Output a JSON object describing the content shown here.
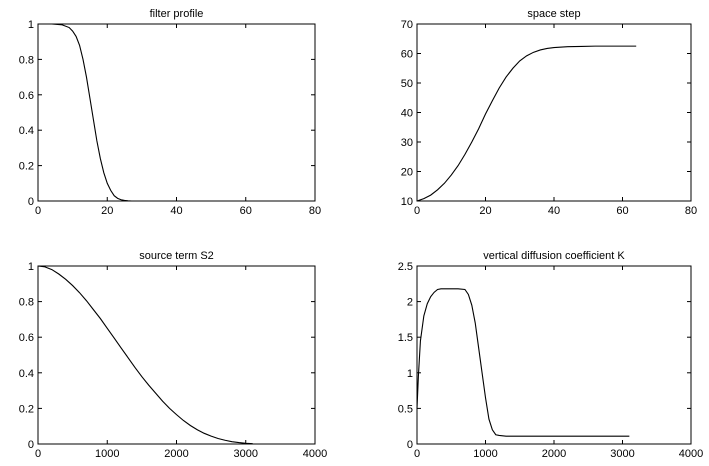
{
  "figure": {
    "background": "#ffffff",
    "line_color": "#000000"
  },
  "chart_data": [
    {
      "type": "line",
      "title": "filter profile",
      "xlabel": "",
      "ylabel": "",
      "xlim": [
        0,
        80
      ],
      "ylim": [
        0,
        1
      ],
      "xticks": [
        0,
        20,
        40,
        60,
        80
      ],
      "yticks": [
        0,
        0.2,
        0.4,
        0.6,
        0.8,
        1
      ],
      "grid": false,
      "series": [
        {
          "x": [
            0,
            4,
            7,
            9,
            10,
            11,
            12,
            13,
            14,
            15,
            16,
            17,
            18,
            19,
            20,
            21,
            22,
            23,
            24,
            25,
            26,
            27,
            28
          ],
          "y": [
            1,
            1,
            0.995,
            0.98,
            0.96,
            0.93,
            0.88,
            0.8,
            0.7,
            0.58,
            0.46,
            0.34,
            0.24,
            0.16,
            0.1,
            0.06,
            0.03,
            0.015,
            0.007,
            0.003,
            0.001,
            0,
            0
          ]
        }
      ]
    },
    {
      "type": "line",
      "title": "space step",
      "xlabel": "",
      "ylabel": "",
      "xlim": [
        0,
        80
      ],
      "ylim": [
        10,
        70
      ],
      "xticks": [
        0,
        20,
        40,
        60,
        80
      ],
      "yticks": [
        10,
        20,
        30,
        40,
        50,
        60,
        70
      ],
      "grid": false,
      "series": [
        {
          "x": [
            0,
            2,
            4,
            6,
            8,
            10,
            12,
            14,
            16,
            18,
            20,
            22,
            24,
            26,
            28,
            30,
            32,
            34,
            36,
            38,
            40,
            44,
            48,
            52,
            56,
            60,
            64
          ],
          "y": [
            10,
            10.8,
            12,
            13.8,
            16,
            18.8,
            22,
            25.8,
            30,
            34.5,
            39.5,
            44,
            48.3,
            52,
            55,
            57.5,
            59.2,
            60.4,
            61.2,
            61.7,
            62,
            62.3,
            62.4,
            62.5,
            62.5,
            62.5,
            62.5
          ]
        }
      ]
    },
    {
      "type": "line",
      "title": "source term S2",
      "xlabel": "",
      "ylabel": "",
      "xlim": [
        0,
        4000
      ],
      "ylim": [
        0,
        1
      ],
      "xticks": [
        0,
        1000,
        2000,
        3000,
        4000
      ],
      "yticks": [
        0,
        0.2,
        0.4,
        0.6,
        0.8,
        1
      ],
      "grid": false,
      "series": [
        {
          "x": [
            0,
            100,
            200,
            300,
            400,
            500,
            600,
            700,
            800,
            900,
            1000,
            1100,
            1200,
            1300,
            1400,
            1500,
            1600,
            1700,
            1800,
            1900,
            2000,
            2100,
            2200,
            2300,
            2400,
            2500,
            2600,
            2700,
            2800,
            2900,
            3000,
            3100
          ],
          "y": [
            1,
            0.995,
            0.98,
            0.955,
            0.925,
            0.89,
            0.85,
            0.805,
            0.755,
            0.705,
            0.65,
            0.595,
            0.54,
            0.485,
            0.43,
            0.378,
            0.33,
            0.285,
            0.24,
            0.2,
            0.165,
            0.132,
            0.104,
            0.08,
            0.06,
            0.044,
            0.031,
            0.021,
            0.013,
            0.008,
            0.004,
            0.002
          ]
        }
      ]
    },
    {
      "type": "line",
      "title": "vertical diffusion coefficient K",
      "xlabel": "",
      "ylabel": "",
      "xlim": [
        0,
        4000
      ],
      "ylim": [
        0,
        2.5
      ],
      "xticks": [
        0,
        1000,
        2000,
        3000,
        4000
      ],
      "yticks": [
        0,
        0.5,
        1,
        1.5,
        2,
        2.5
      ],
      "grid": false,
      "series": [
        {
          "x": [
            0,
            20,
            50,
            100,
            150,
            200,
            250,
            300,
            350,
            400,
            500,
            600,
            700,
            750,
            800,
            850,
            900,
            950,
            1000,
            1050,
            1100,
            1150,
            1200,
            1300,
            1500,
            2000,
            2500,
            3100
          ],
          "y": [
            0.5,
            0.95,
            1.45,
            1.8,
            1.97,
            2.07,
            2.13,
            2.17,
            2.18,
            2.18,
            2.18,
            2.18,
            2.17,
            2.1,
            1.95,
            1.7,
            1.35,
            1.0,
            0.65,
            0.35,
            0.2,
            0.13,
            0.12,
            0.11,
            0.11,
            0.11,
            0.11,
            0.11
          ]
        }
      ]
    }
  ]
}
